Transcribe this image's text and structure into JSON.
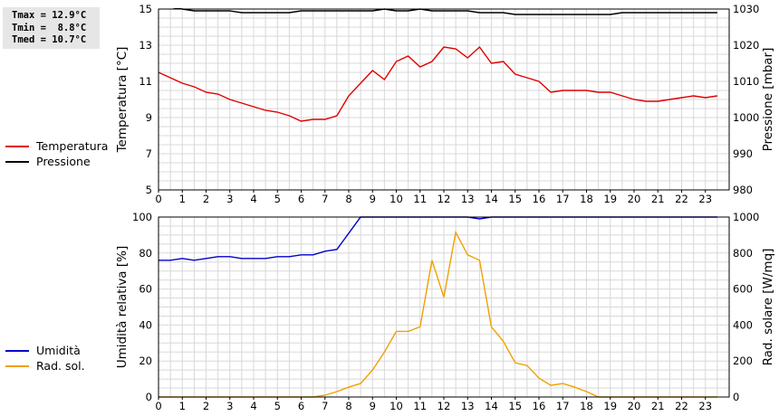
{
  "stats": [
    "Tmax = 12.9°C",
    "Tmin =  8.8°C",
    "Tmed = 10.7°C"
  ],
  "legend_top": [
    {
      "name": "Temperatura",
      "color": "#e00000"
    },
    {
      "name": "Pressione",
      "color": "#000000"
    }
  ],
  "legend_bottom": [
    {
      "name": "Umidità",
      "color": "#0000cc"
    },
    {
      "name": "Rad. sol.",
      "color": "#f0a000"
    }
  ],
  "chart_data": [
    {
      "type": "line",
      "xlim": [
        0,
        24
      ],
      "x_ticks": [
        "0",
        "1",
        "2",
        "3",
        "4",
        "5",
        "6",
        "7",
        "8",
        "9",
        "10",
        "11",
        "12",
        "13",
        "14",
        "15",
        "16",
        "17",
        "18",
        "19",
        "20",
        "21",
        "22",
        "23"
      ],
      "ylabel": "Temperatura [°C]",
      "ylim": [
        5,
        15
      ],
      "y_ticks": [
        "5",
        "7",
        "9",
        "11",
        "13",
        "15"
      ],
      "y2label": "Pressione [mbar]",
      "y2lim": [
        980,
        1030
      ],
      "y2_ticks": [
        "980",
        "990",
        "1000",
        "1010",
        "1020",
        "1030"
      ],
      "grid": true,
      "series": [
        {
          "name": "Temperatura",
          "axis": "left",
          "color": "#e00000",
          "x": [
            0,
            0.5,
            1,
            1.5,
            2,
            2.5,
            3,
            3.5,
            4,
            4.5,
            5,
            5.5,
            6,
            6.5,
            7,
            7.5,
            8,
            8.5,
            9,
            9.5,
            10,
            10.5,
            11,
            11.5,
            12,
            12.5,
            13,
            13.5,
            14,
            14.5,
            15,
            15.5,
            16,
            16.5,
            17,
            17.5,
            18,
            18.5,
            19,
            19.5,
            20,
            20.5,
            21,
            21.5,
            22,
            22.5,
            23,
            23.5
          ],
          "y": [
            11.5,
            11.2,
            10.9,
            10.7,
            10.4,
            10.3,
            10.0,
            9.8,
            9.6,
            9.4,
            9.3,
            9.1,
            8.8,
            8.9,
            8.9,
            9.1,
            10.2,
            10.9,
            11.6,
            11.1,
            12.1,
            12.4,
            11.8,
            12.1,
            12.9,
            12.8,
            12.3,
            12.9,
            12.0,
            12.1,
            11.4,
            11.2,
            11.0,
            10.4,
            10.5,
            10.5,
            10.5,
            10.4,
            10.4,
            10.2,
            10.0,
            9.9,
            9.9,
            10.0,
            10.1,
            10.2,
            10.1,
            10.2
          ]
        },
        {
          "name": "Pressione",
          "axis": "right",
          "color": "#000000",
          "x": [
            0,
            0.5,
            1,
            1.5,
            2,
            2.5,
            3,
            3.5,
            4,
            4.5,
            5,
            5.5,
            6,
            6.5,
            7,
            7.5,
            8,
            8.5,
            9,
            9.5,
            10,
            10.5,
            11,
            11.5,
            12,
            12.5,
            13,
            13.5,
            14,
            14.5,
            15,
            15.5,
            16,
            16.5,
            17,
            17.5,
            18,
            18.5,
            19,
            19.5,
            20,
            20.5,
            21,
            21.5,
            22,
            22.5,
            23,
            23.5
          ],
          "y": [
            1031,
            1030.5,
            1030,
            1029.5,
            1029.5,
            1029.5,
            1029.5,
            1029,
            1029,
            1029,
            1029,
            1029,
            1029.5,
            1029.5,
            1029.5,
            1029.5,
            1029.5,
            1029.5,
            1029.5,
            1030,
            1029.5,
            1029.5,
            1030,
            1029.5,
            1029.5,
            1029.5,
            1029.5,
            1029,
            1029,
            1029,
            1028.5,
            1028.5,
            1028.5,
            1028.5,
            1028.5,
            1028.5,
            1028.5,
            1028.5,
            1028.5,
            1029,
            1029,
            1029,
            1029,
            1029,
            1029,
            1029,
            1029,
            1029
          ]
        }
      ]
    },
    {
      "type": "line",
      "xlim": [
        0,
        24
      ],
      "x_ticks": [
        "0",
        "1",
        "2",
        "3",
        "4",
        "5",
        "6",
        "7",
        "8",
        "9",
        "10",
        "11",
        "12",
        "13",
        "14",
        "15",
        "16",
        "17",
        "18",
        "19",
        "20",
        "21",
        "22",
        "23"
      ],
      "ylabel": "Umidità relativa [%]",
      "ylim": [
        0,
        100
      ],
      "y_ticks": [
        "0",
        "20",
        "40",
        "60",
        "80",
        "100"
      ],
      "y2label": "Rad. solare [W/mq]",
      "y2lim": [
        0,
        1000
      ],
      "y2_ticks": [
        "0",
        "200",
        "400",
        "600",
        "800",
        "1000"
      ],
      "grid": true,
      "series": [
        {
          "name": "Umidità",
          "axis": "left",
          "color": "#0000cc",
          "x": [
            0,
            0.5,
            1,
            1.5,
            2,
            2.5,
            3,
            3.5,
            4,
            4.5,
            5,
            5.5,
            6,
            6.5,
            7,
            7.5,
            8,
            8.5,
            9,
            9.5,
            10,
            10.5,
            11,
            11.5,
            12,
            12.5,
            13,
            13.5,
            14,
            14.5,
            15,
            15.5,
            16,
            16.5,
            17,
            17.5,
            18,
            18.5,
            19,
            19.5,
            20,
            20.5,
            21,
            21.5,
            22,
            22.5,
            23,
            23.5
          ],
          "y": [
            76,
            76,
            77,
            76,
            77,
            78,
            78,
            77,
            77,
            77,
            78,
            78,
            79,
            79,
            81,
            82,
            91,
            100,
            100,
            100,
            100,
            100,
            100,
            100,
            100,
            100,
            100,
            99,
            100,
            100,
            100,
            100,
            100,
            100,
            100,
            100,
            100,
            100,
            100,
            100,
            100,
            100,
            100,
            100,
            100,
            100,
            100,
            100
          ]
        },
        {
          "name": "Rad. sol.",
          "axis": "right",
          "color": "#f0a000",
          "x": [
            0,
            0.5,
            1,
            1.5,
            2,
            2.5,
            3,
            3.5,
            4,
            4.5,
            5,
            5.5,
            6,
            6.5,
            7,
            7.5,
            8,
            8.5,
            9,
            9.5,
            10,
            10.5,
            11,
            11.5,
            12,
            12.5,
            13,
            13.5,
            14,
            14.5,
            15,
            15.5,
            16,
            16.5,
            17,
            17.5,
            18,
            18.5,
            19,
            19.5,
            20,
            20.5,
            21,
            21.5,
            22,
            22.5,
            23,
            23.5
          ],
          "y": [
            0,
            0,
            0,
            0,
            0,
            0,
            0,
            0,
            0,
            0,
            0,
            0,
            0,
            0,
            10,
            30,
            55,
            75,
            150,
            250,
            365,
            365,
            390,
            760,
            555,
            915,
            790,
            760,
            390,
            310,
            190,
            175,
            105,
            65,
            75,
            55,
            30,
            0,
            0,
            0,
            0,
            0,
            0,
            0,
            0,
            0,
            0,
            0
          ]
        }
      ]
    }
  ]
}
